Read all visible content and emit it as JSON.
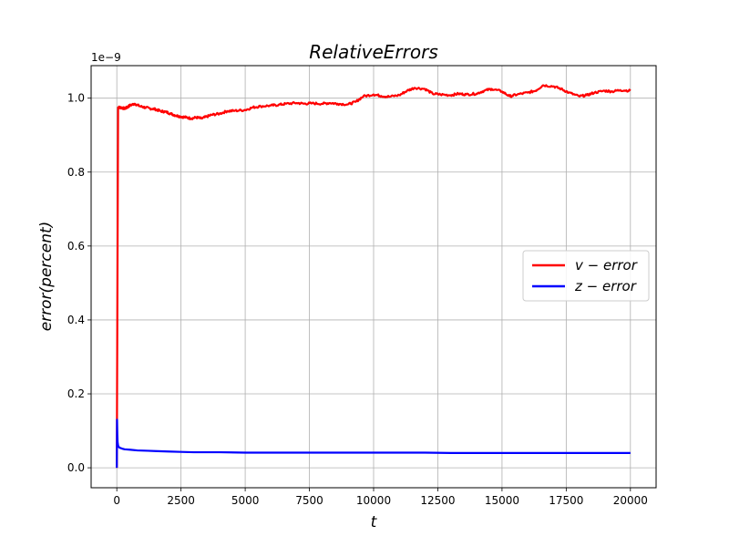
{
  "chart_data": {
    "type": "line",
    "title": "RelativeErrors",
    "xlabel": "t",
    "ylabel": "error(percent)",
    "y_offset_label": "1e−9",
    "y_scale": 1e-09,
    "xlim": [
      -1000,
      21000
    ],
    "ylim": [
      -0.054,
      1.088
    ],
    "x_ticks": [
      0,
      2500,
      5000,
      7500,
      10000,
      12500,
      15000,
      17500,
      20000
    ],
    "x_tick_labels": [
      "0",
      "2500",
      "5000",
      "7500",
      "10000",
      "12500",
      "15000",
      "17500",
      "20000"
    ],
    "y_ticks": [
      0.0,
      0.2,
      0.4,
      0.6,
      0.8,
      1.0
    ],
    "y_tick_labels": [
      "0.0",
      "0.2",
      "0.4",
      "0.6",
      "0.8",
      "1.0"
    ],
    "grid": true,
    "legend_position": "center-right",
    "series": [
      {
        "name": "v − error",
        "color": "#ff0000",
        "x": [
          0,
          20,
          50,
          100,
          200,
          300,
          400,
          500,
          700,
          900,
          1100,
          1300,
          1500,
          1700,
          1900,
          2100,
          2300,
          2500,
          2700,
          2900,
          3100,
          3300,
          3500,
          3700,
          4000,
          4300,
          4600,
          5000,
          5300,
          5600,
          6000,
          6300,
          6600,
          7000,
          7300,
          7600,
          8000,
          8300,
          8600,
          9000,
          9300,
          9600,
          10000,
          10300,
          10600,
          11000,
          11300,
          11600,
          12000,
          12300,
          12600,
          13000,
          13300,
          13600,
          14000,
          14300,
          14600,
          15000,
          15300,
          15600,
          16000,
          16300,
          16600,
          17000,
          17300,
          17600,
          18000,
          18300,
          18600,
          19000,
          19300,
          19600,
          20000
        ],
        "values": [
          0.0,
          0.4,
          0.975,
          0.975,
          0.974,
          0.972,
          0.975,
          0.98,
          0.985,
          0.978,
          0.975,
          0.972,
          0.97,
          0.965,
          0.963,
          0.958,
          0.953,
          0.95,
          0.948,
          0.945,
          0.948,
          0.945,
          0.95,
          0.955,
          0.958,
          0.965,
          0.966,
          0.968,
          0.975,
          0.978,
          0.98,
          0.982,
          0.985,
          0.987,
          0.985,
          0.986,
          0.985,
          0.987,
          0.985,
          0.983,
          0.99,
          1.005,
          1.01,
          1.006,
          1.004,
          1.008,
          1.02,
          1.028,
          1.025,
          1.012,
          1.01,
          1.008,
          1.012,
          1.01,
          1.012,
          1.02,
          1.025,
          1.018,
          1.005,
          1.01,
          1.015,
          1.02,
          1.035,
          1.032,
          1.025,
          1.015,
          1.005,
          1.008,
          1.015,
          1.02,
          1.018,
          1.022,
          1.02
        ]
      },
      {
        "name": "z − error",
        "color": "#0000ff",
        "x": [
          0,
          10,
          20,
          30,
          50,
          80,
          120,
          200,
          300,
          500,
          800,
          1200,
          1600,
          2000,
          2500,
          3000,
          4000,
          5000,
          6000,
          7000,
          8000,
          9000,
          10000,
          11000,
          12000,
          13000,
          14000,
          15000,
          16000,
          17000,
          18000,
          19000,
          20000
        ],
        "values": [
          0.0,
          0.13,
          0.09,
          0.07,
          0.06,
          0.056,
          0.054,
          0.052,
          0.05,
          0.049,
          0.047,
          0.046,
          0.045,
          0.044,
          0.043,
          0.042,
          0.042,
          0.041,
          0.041,
          0.041,
          0.041,
          0.041,
          0.041,
          0.041,
          0.041,
          0.04,
          0.04,
          0.04,
          0.04,
          0.04,
          0.04,
          0.04,
          0.04
        ]
      }
    ]
  }
}
